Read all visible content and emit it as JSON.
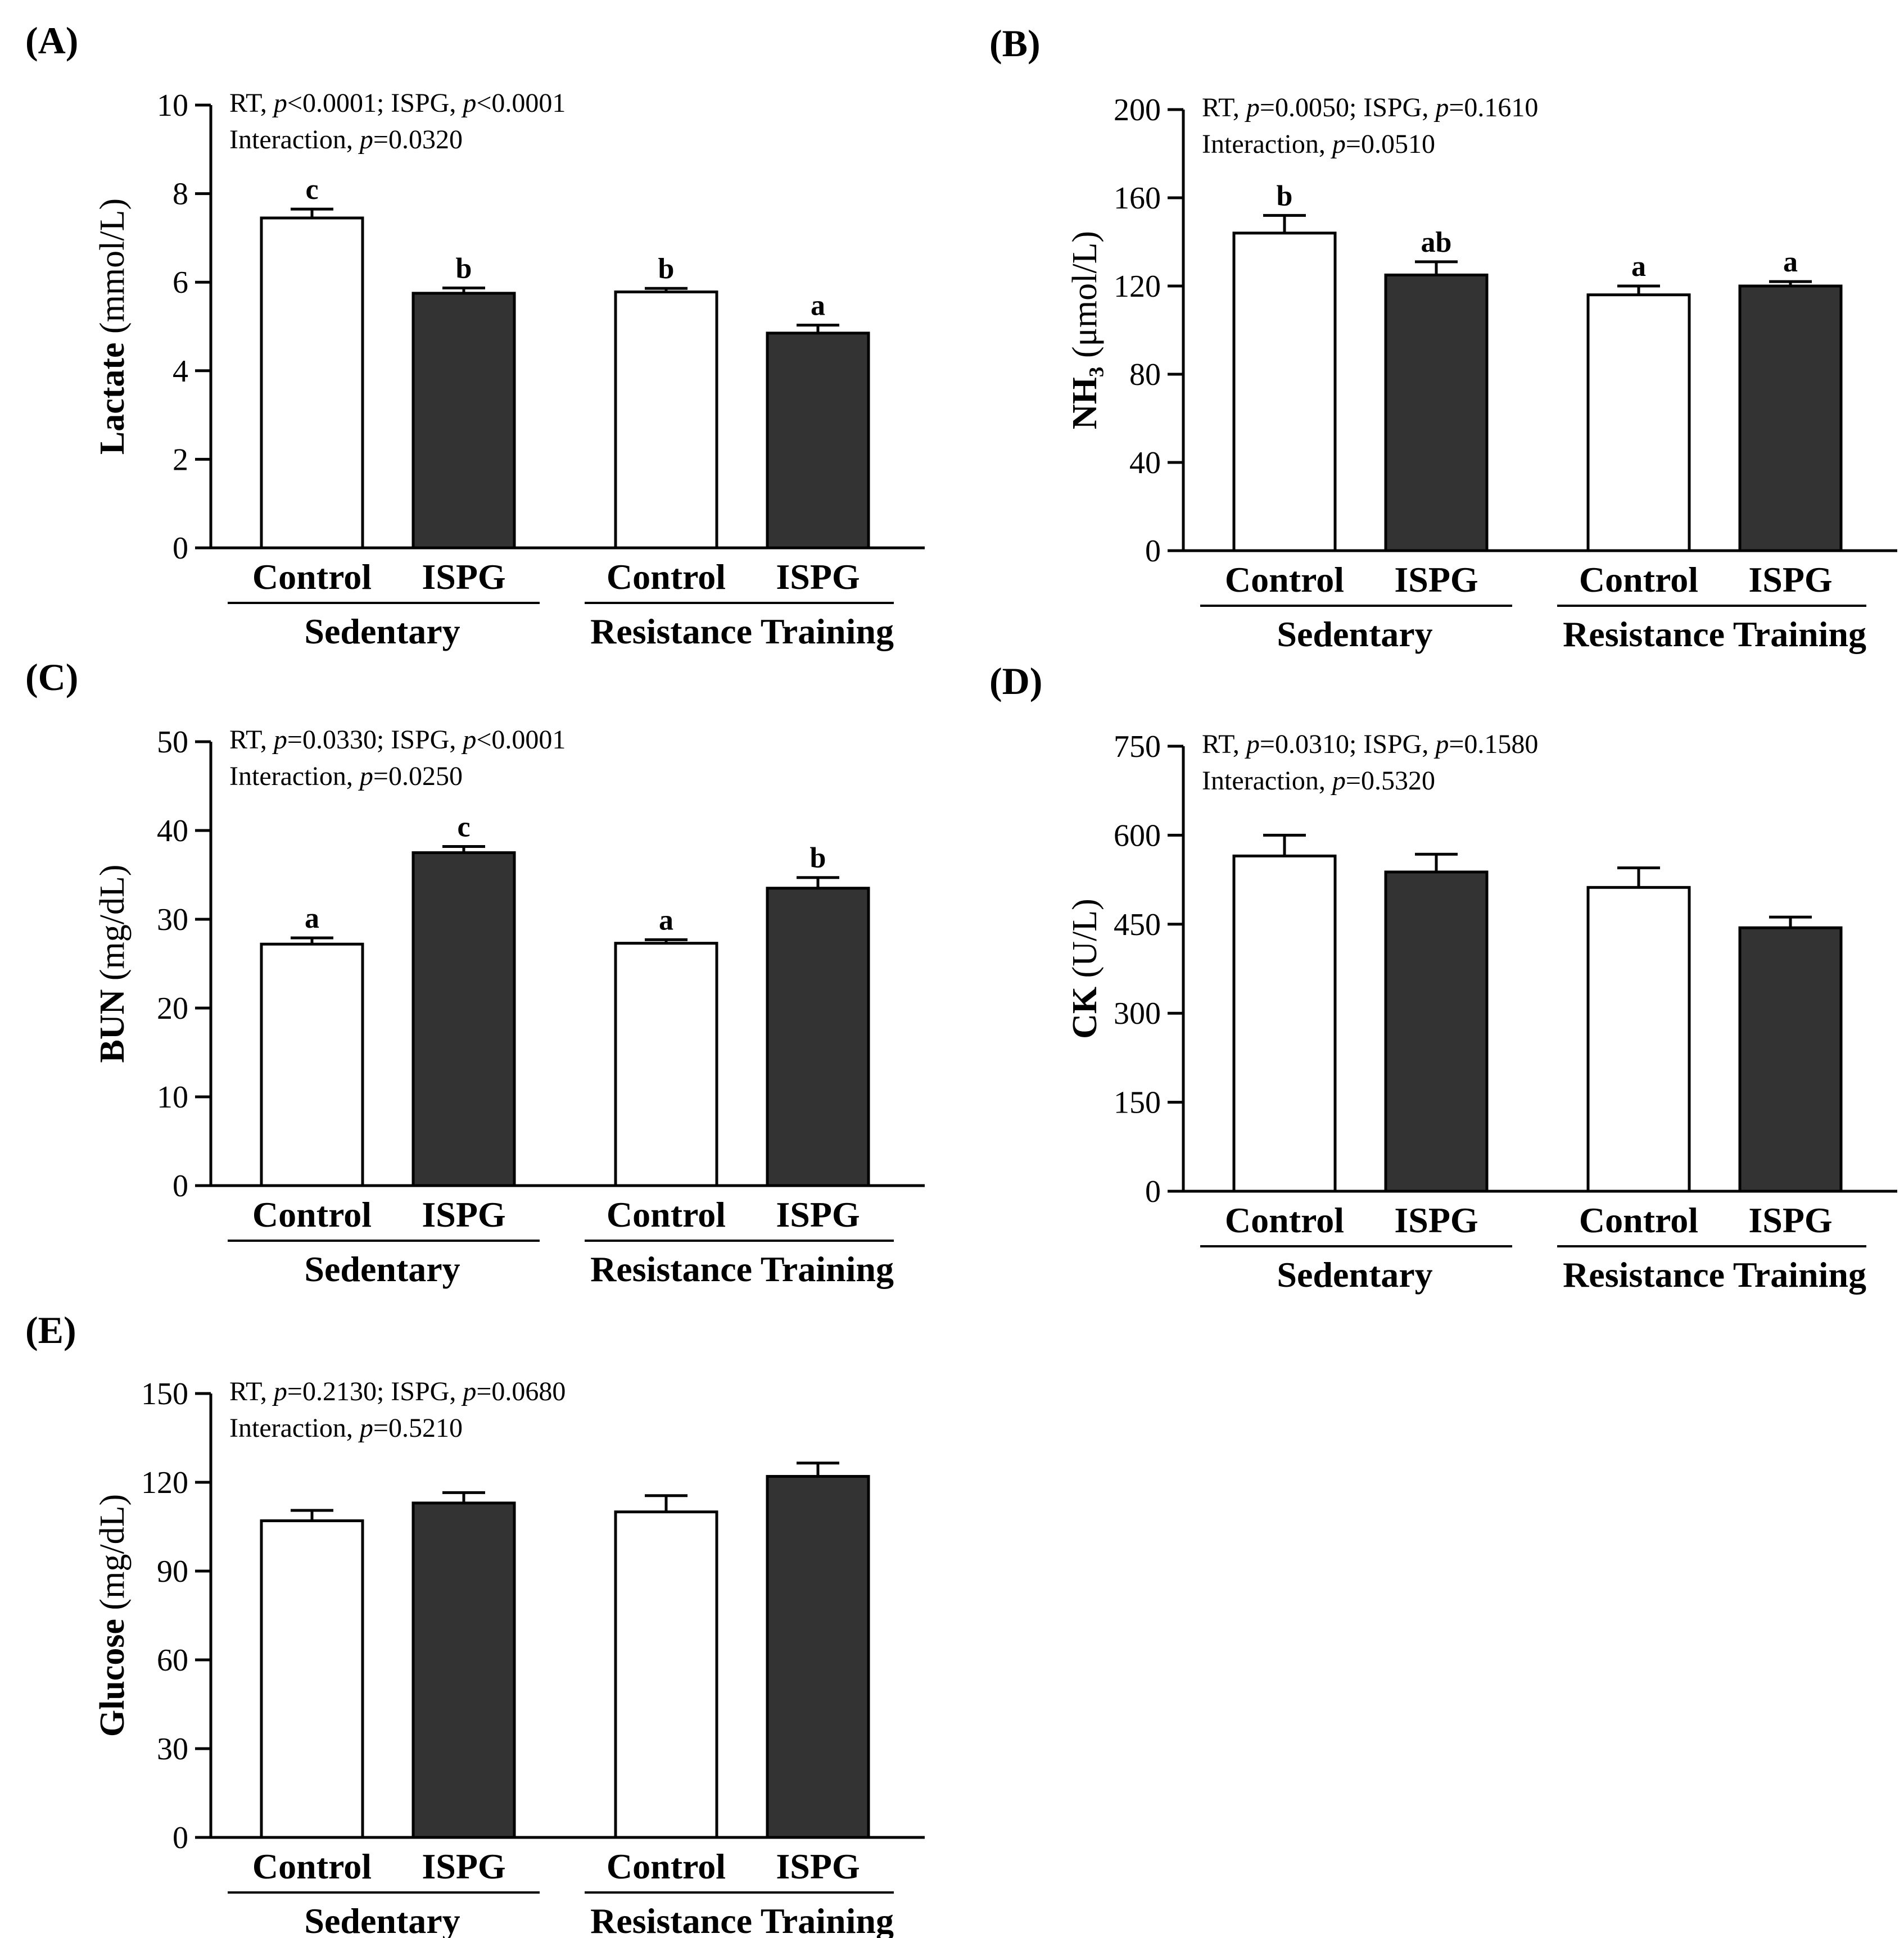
{
  "chart_data": [
    {
      "type": "bar",
      "panel_label": "(A)",
      "ylabel_main": "Lactate",
      "ylabel_unit": "(mmol/L)",
      "ylim": [
        0,
        10
      ],
      "yticks": [
        "0",
        "2",
        "4",
        "6",
        "8",
        "10"
      ],
      "stats_line1": [
        {
          "t": "RT, ",
          "i": false
        },
        {
          "t": "p",
          "i": true
        },
        {
          "t": "<0.0001; ISPG, ",
          "i": false
        },
        {
          "t": "p",
          "i": true
        },
        {
          "t": "<0.0001",
          "i": false
        }
      ],
      "stats_line2": [
        {
          "t": "Interaction, ",
          "i": false
        },
        {
          "t": "p",
          "i": true
        },
        {
          "t": "=0.0320",
          "i": false
        }
      ],
      "categories": [
        "Control",
        "ISPG",
        "Control",
        "ISPG"
      ],
      "groups": [
        "Sedentary",
        "Resistance Training"
      ],
      "values": [
        7.45,
        5.75,
        5.78,
        4.85
      ],
      "errors": [
        0.2,
        0.12,
        0.08,
        0.18
      ],
      "fills": [
        "#ffffff",
        "#333333",
        "#ffffff",
        "#333333"
      ],
      "letters": [
        "c",
        "b",
        "b",
        "a"
      ]
    },
    {
      "type": "bar",
      "panel_label": "(B)",
      "ylabel_main": "NH₃",
      "ylabel_unit": "(μmol/L)",
      "ylim": [
        0,
        200
      ],
      "yticks": [
        "0",
        "40",
        "80",
        "120",
        "160",
        "200"
      ],
      "stats_line1": [
        {
          "t": "RT, ",
          "i": false
        },
        {
          "t": "p",
          "i": true
        },
        {
          "t": "=0.0050; ISPG, ",
          "i": false
        },
        {
          "t": "p",
          "i": true
        },
        {
          "t": "=0.1610",
          "i": false
        }
      ],
      "stats_line2": [
        {
          "t": "Interaction, ",
          "i": false
        },
        {
          "t": "p",
          "i": true
        },
        {
          "t": "=0.0510",
          "i": false
        }
      ],
      "categories": [
        "Control",
        "ISPG",
        "Control",
        "ISPG"
      ],
      "groups": [
        "Sedentary",
        "Resistance Training"
      ],
      "values": [
        144,
        125,
        116,
        120
      ],
      "errors": [
        8,
        6,
        4,
        2
      ],
      "fills": [
        "#ffffff",
        "#333333",
        "#ffffff",
        "#333333"
      ],
      "letters": [
        "b",
        "ab",
        "a",
        "a"
      ]
    },
    {
      "type": "bar",
      "panel_label": "(C)",
      "ylabel_main": "BUN",
      "ylabel_unit": "(mg/dL)",
      "ylim": [
        0,
        50
      ],
      "yticks": [
        "0",
        "10",
        "20",
        "30",
        "40",
        "50"
      ],
      "stats_line1": [
        {
          "t": "RT, ",
          "i": false
        },
        {
          "t": "p",
          "i": true
        },
        {
          "t": "=0.0330; ISPG, ",
          "i": false
        },
        {
          "t": "p",
          "i": true
        },
        {
          "t": "<0.0001",
          "i": false
        }
      ],
      "stats_line2": [
        {
          "t": "Interaction, ",
          "i": false
        },
        {
          "t": "p",
          "i": true
        },
        {
          "t": "=0.0250",
          "i": false
        }
      ],
      "categories": [
        "Control",
        "ISPG",
        "Control",
        "ISPG"
      ],
      "groups": [
        "Sedentary",
        "Resistance Training"
      ],
      "values": [
        27.2,
        37.5,
        27.3,
        33.5
      ],
      "errors": [
        0.7,
        0.7,
        0.4,
        1.2
      ],
      "fills": [
        "#ffffff",
        "#333333",
        "#ffffff",
        "#333333"
      ],
      "letters": [
        "a",
        "c",
        "a",
        "b"
      ]
    },
    {
      "type": "bar",
      "panel_label": "(D)",
      "ylabel_main": "CK",
      "ylabel_unit": "(U/L)",
      "ylim": [
        0,
        750
      ],
      "yticks": [
        "0",
        "150",
        "300",
        "450",
        "600",
        "750"
      ],
      "stats_line1": [
        {
          "t": "RT, ",
          "i": false
        },
        {
          "t": "p",
          "i": true
        },
        {
          "t": "=0.0310; ISPG, ",
          "i": false
        },
        {
          "t": "p",
          "i": true
        },
        {
          "t": "=0.1580",
          "i": false
        }
      ],
      "stats_line2": [
        {
          "t": "Interaction, ",
          "i": false
        },
        {
          "t": "p",
          "i": true
        },
        {
          "t": "=0.5320",
          "i": false
        }
      ],
      "categories": [
        "Control",
        "ISPG",
        "Control",
        "ISPG"
      ],
      "groups": [
        "Sedentary",
        "Resistance Training"
      ],
      "values": [
        565,
        538,
        512,
        444
      ],
      "errors": [
        35,
        30,
        33,
        18
      ],
      "fills": [
        "#ffffff",
        "#333333",
        "#ffffff",
        "#333333"
      ],
      "letters": [
        "",
        "",
        "",
        ""
      ]
    },
    {
      "type": "bar",
      "panel_label": "(E)",
      "ylabel_main": "Glucose",
      "ylabel_unit": "(mg/dL)",
      "ylim": [
        0,
        150
      ],
      "yticks": [
        "0",
        "30",
        "60",
        "90",
        "120",
        "150"
      ],
      "stats_line1": [
        {
          "t": "RT, ",
          "i": false
        },
        {
          "t": "p",
          "i": true
        },
        {
          "t": "=0.2130; ISPG, ",
          "i": false
        },
        {
          "t": "p",
          "i": true
        },
        {
          "t": "=0.0680",
          "i": false
        }
      ],
      "stats_line2": [
        {
          "t": "Interaction, ",
          "i": false
        },
        {
          "t": "p",
          "i": true
        },
        {
          "t": "=0.5210",
          "i": false
        }
      ],
      "categories": [
        "Control",
        "ISPG",
        "Control",
        "ISPG"
      ],
      "groups": [
        "Sedentary",
        "Resistance Training"
      ],
      "values": [
        107,
        113,
        110,
        122
      ],
      "errors": [
        3.5,
        3.5,
        5.5,
        4.5
      ],
      "fills": [
        "#ffffff",
        "#333333",
        "#ffffff",
        "#333333"
      ],
      "letters": [
        "",
        "",
        "",
        ""
      ]
    }
  ]
}
